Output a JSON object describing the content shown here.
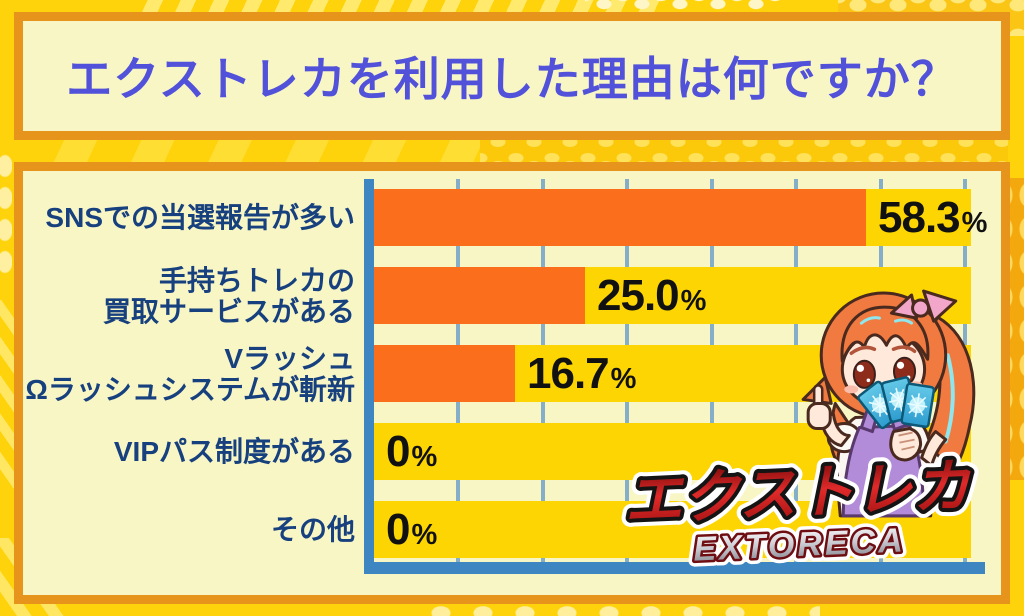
{
  "title": "エクストレカを利用した理由は何ですか？",
  "chart_data": {
    "type": "bar",
    "orientation": "horizontal",
    "title": "エクストレカを利用した理由は何ですか？",
    "categories": [
      "SNSでの当選報告が多い",
      "手持ちトレカの買取サービスがある",
      "VラッシュΩラッシュシステムが斬新",
      "VIPパス制度がある",
      "その他"
    ],
    "label_lines": [
      [
        "SNSでの当選報告が多い",
        ""
      ],
      [
        "手持ちトレカの",
        "買取サービスがある"
      ],
      [
        "Vラッシュ",
        "Ωラッシュシステムが斬新"
      ],
      [
        "VIPパス制度がある",
        ""
      ],
      [
        "その他",
        ""
      ]
    ],
    "values": [
      58.3,
      25.0,
      16.7,
      0,
      0
    ],
    "value_labels": [
      "58.3",
      "25.0",
      "16.7",
      "0",
      "0"
    ],
    "value_suffix": "%",
    "xlim": [
      0,
      70.7
    ],
    "gridline_interval": 10,
    "grid": true,
    "legend": false,
    "bar_color": "#FB6F1C",
    "track_color": "#FCD503",
    "axis_color": "#3E86C1",
    "gridline_color": "#85AFC9",
    "category_label_color": "#17407E",
    "value_label_color": "#111111"
  },
  "branding": {
    "logo_jp": "エクストレカ",
    "logo_en": "EXTORECA",
    "mascot": "extoreca-girl-holding-cards"
  },
  "colors": {
    "background": "#FFD30B",
    "panel_background": "#F9F6C6",
    "panel_border": "#E7941C",
    "title_text": "#5152D9"
  }
}
